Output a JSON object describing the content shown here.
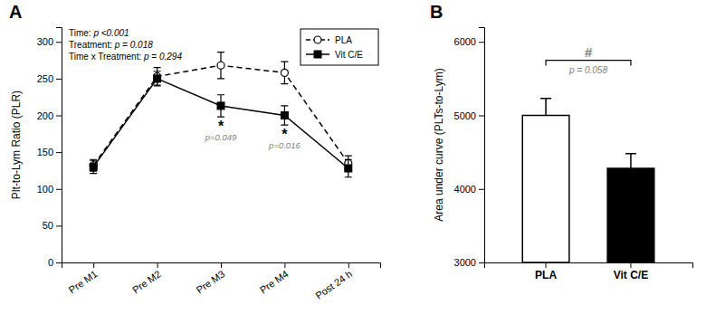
{
  "chart_data": [
    {
      "type": "line",
      "title": "A",
      "categories": [
        "Pre M1",
        "Pre M2",
        "Pre M3",
        "Pre M4",
        "Post 24 h"
      ],
      "series": [
        {
          "name": "PLA",
          "color": "black",
          "marker": "open-circle",
          "line_style": "dashed",
          "values": [
            132,
            253,
            268,
            258,
            135
          ],
          "errors": [
            8,
            12,
            18,
            15,
            10
          ]
        },
        {
          "name": "Vit C/E",
          "color": "black",
          "marker": "square",
          "line_style": "solid",
          "values": [
            130,
            250,
            213,
            200,
            128
          ],
          "errors": [
            9,
            10,
            15,
            13,
            12
          ]
        }
      ],
      "ylabel": "Plt-to-Lym Ratio (PLR)",
      "ylim": [
        0,
        320
      ],
      "yticks": [
        0,
        50,
        100,
        150,
        200,
        250,
        300
      ],
      "legend": "upper right",
      "annotations": [
        {
          "text": "Time: p <0.001"
        },
        {
          "text": "Treatment: p = 0.018"
        },
        {
          "text": "Time x Treatment: p = 0.294"
        },
        {
          "text": "*",
          "x": "Pre M3",
          "series": "Vit C/E"
        },
        {
          "text": "p=0.049",
          "x": "Pre M3",
          "series": "Vit C/E"
        },
        {
          "text": "*",
          "x": "Pre M4",
          "series": "Vit C/E"
        },
        {
          "text": "p=0.016",
          "x": "Pre M4",
          "series": "Vit C/E"
        }
      ]
    },
    {
      "type": "bar",
      "title": "B",
      "categories": [
        "PLA",
        "Vit C/E"
      ],
      "values": [
        5000,
        4280
      ],
      "errors": [
        230,
        200
      ],
      "colors": [
        "white",
        "black"
      ],
      "ylabel": "Area under curve (PLTs-to-Lym)",
      "ylim": [
        3000,
        6200
      ],
      "yticks": [
        3000,
        4000,
        5000,
        6000
      ],
      "annotations": [
        {
          "text": "#",
          "x": [
            "PLA",
            "Vit C/E"
          ],
          "y": 5750
        },
        {
          "text": "p = 0.058",
          "x": [
            "PLA",
            "Vit C/E"
          ],
          "y": 5750
        }
      ]
    }
  ]
}
